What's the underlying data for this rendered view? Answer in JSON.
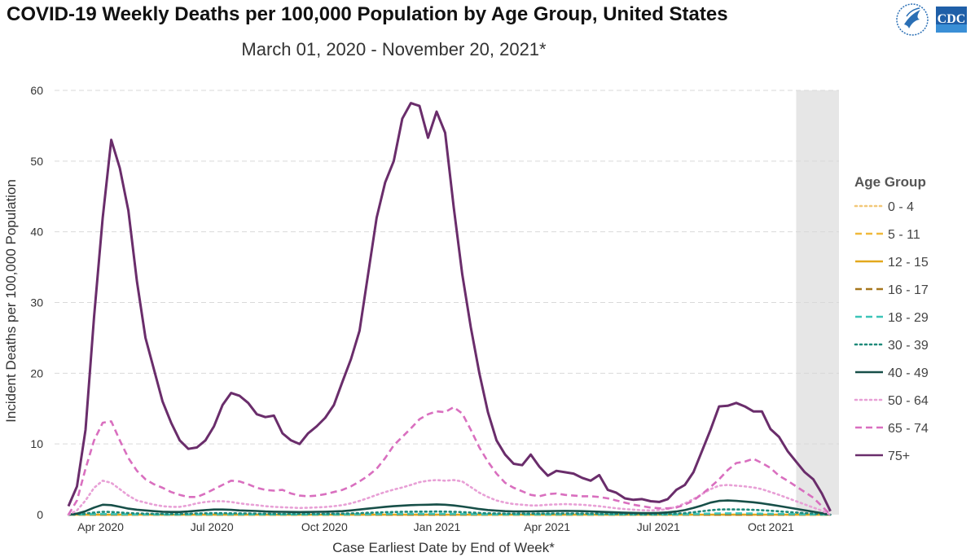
{
  "chart_data": {
    "type": "line",
    "title": "COVID-19 Weekly Deaths per 100,000 Population by Age Group, United States",
    "subtitle": "March 01, 2020 - November 20, 2021*",
    "xlabel": "Case Earliest Date by End of Week*",
    "ylabel": "Incident Deaths per 100,000 Population",
    "ylim": [
      0,
      60
    ],
    "yticks": [
      0,
      10,
      20,
      30,
      40,
      50,
      60
    ],
    "x_tick_labels": [
      {
        "date": "2020-04-01",
        "label": "Apr 2020"
      },
      {
        "date": "2020-07-01",
        "label": "Jul 2020"
      },
      {
        "date": "2020-10-01",
        "label": "Oct 2020"
      },
      {
        "date": "2021-01-01",
        "label": "Jan 2021"
      },
      {
        "date": "2021-04-01",
        "label": "Apr 2021"
      },
      {
        "date": "2021-07-01",
        "label": "Jul 2021"
      },
      {
        "date": "2021-10-01",
        "label": "Oct 2021"
      }
    ],
    "x_range": [
      "2020-03-01",
      "2021-11-27"
    ],
    "shaded_region": [
      "2021-10-23",
      "2021-11-27"
    ],
    "grid": "horizontal dashed",
    "legend_title": "Age Group",
    "legend_position": "right",
    "x": [
      "2020-03-07",
      "2020-03-14",
      "2020-03-21",
      "2020-03-28",
      "2020-04-04",
      "2020-04-11",
      "2020-04-18",
      "2020-04-25",
      "2020-05-02",
      "2020-05-09",
      "2020-05-16",
      "2020-05-23",
      "2020-05-30",
      "2020-06-06",
      "2020-06-13",
      "2020-06-20",
      "2020-06-27",
      "2020-07-04",
      "2020-07-11",
      "2020-07-18",
      "2020-07-25",
      "2020-08-01",
      "2020-08-08",
      "2020-08-15",
      "2020-08-22",
      "2020-08-29",
      "2020-09-05",
      "2020-09-12",
      "2020-09-19",
      "2020-09-26",
      "2020-10-03",
      "2020-10-10",
      "2020-10-17",
      "2020-10-24",
      "2020-10-31",
      "2020-11-07",
      "2020-11-14",
      "2020-11-21",
      "2020-11-28",
      "2020-12-05",
      "2020-12-12",
      "2020-12-19",
      "2020-12-26",
      "2021-01-02",
      "2021-01-09",
      "2021-01-16",
      "2021-01-23",
      "2021-01-30",
      "2021-02-06",
      "2021-02-13",
      "2021-02-20",
      "2021-02-27",
      "2021-03-06",
      "2021-03-13",
      "2021-03-20",
      "2021-03-27",
      "2021-04-03",
      "2021-04-10",
      "2021-04-17",
      "2021-04-24",
      "2021-05-01",
      "2021-05-08",
      "2021-05-15",
      "2021-05-22",
      "2021-05-29",
      "2021-06-05",
      "2021-06-12",
      "2021-06-19",
      "2021-06-26",
      "2021-07-03",
      "2021-07-10",
      "2021-07-17",
      "2021-07-24",
      "2021-07-31",
      "2021-08-07",
      "2021-08-14",
      "2021-08-21",
      "2021-08-28",
      "2021-09-04",
      "2021-09-11",
      "2021-09-18",
      "2021-09-25",
      "2021-10-02",
      "2021-10-09",
      "2021-10-16",
      "2021-10-23",
      "2021-10-30",
      "2021-11-06",
      "2021-11-13",
      "2021-11-20"
    ],
    "series": [
      {
        "name": "0 - 4",
        "color": "#f2c879",
        "dash": "dot",
        "values": [
          0,
          0,
          0,
          0,
          0,
          0,
          0,
          0,
          0,
          0,
          0,
          0,
          0,
          0,
          0,
          0,
          0,
          0,
          0,
          0,
          0,
          0,
          0,
          0,
          0,
          0,
          0,
          0,
          0,
          0,
          0,
          0,
          0,
          0,
          0,
          0,
          0,
          0,
          0,
          0,
          0,
          0,
          0,
          0,
          0,
          0,
          0,
          0,
          0,
          0,
          0,
          0,
          0,
          0,
          0,
          0,
          0,
          0,
          0,
          0,
          0,
          0,
          0,
          0,
          0,
          0,
          0,
          0,
          0,
          0,
          0,
          0,
          0,
          0,
          0,
          0,
          0,
          0,
          0,
          0,
          0,
          0,
          0,
          0,
          0,
          0,
          0,
          0,
          0,
          0
        ]
      },
      {
        "name": "5 - 11",
        "color": "#f0b93b",
        "dash": "dash",
        "values": [
          0,
          0,
          0,
          0,
          0,
          0,
          0,
          0,
          0,
          0,
          0,
          0,
          0,
          0,
          0,
          0,
          0,
          0,
          0,
          0,
          0,
          0,
          0,
          0,
          0,
          0,
          0,
          0,
          0,
          0,
          0,
          0,
          0,
          0,
          0,
          0,
          0,
          0,
          0,
          0,
          0,
          0,
          0,
          0,
          0,
          0,
          0,
          0,
          0,
          0,
          0,
          0,
          0,
          0,
          0,
          0,
          0,
          0,
          0,
          0,
          0,
          0,
          0,
          0,
          0,
          0,
          0,
          0,
          0,
          0,
          0,
          0,
          0,
          0,
          0,
          0,
          0,
          0,
          0,
          0,
          0,
          0,
          0,
          0,
          0,
          0,
          0,
          0,
          0,
          0
        ]
      },
      {
        "name": "12 - 15",
        "color": "#e3a81d",
        "dash": "solid",
        "values": [
          0,
          0,
          0,
          0,
          0,
          0,
          0,
          0,
          0,
          0,
          0,
          0,
          0,
          0,
          0,
          0,
          0,
          0,
          0,
          0,
          0,
          0,
          0,
          0,
          0,
          0,
          0,
          0,
          0,
          0,
          0,
          0,
          0,
          0,
          0,
          0,
          0,
          0,
          0,
          0,
          0,
          0,
          0,
          0,
          0,
          0,
          0,
          0,
          0,
          0,
          0,
          0,
          0,
          0,
          0,
          0,
          0,
          0,
          0,
          0,
          0,
          0,
          0,
          0,
          0,
          0,
          0,
          0,
          0,
          0,
          0,
          0,
          0,
          0,
          0,
          0,
          0,
          0,
          0,
          0,
          0,
          0,
          0,
          0,
          0,
          0,
          0,
          0,
          0,
          0
        ]
      },
      {
        "name": "16 - 17",
        "color": "#a6761d",
        "dash": "dash",
        "values": [
          0,
          0,
          0,
          0,
          0,
          0,
          0,
          0,
          0,
          0,
          0,
          0,
          0,
          0,
          0,
          0,
          0,
          0,
          0,
          0,
          0,
          0,
          0,
          0,
          0,
          0,
          0,
          0,
          0,
          0,
          0,
          0,
          0,
          0,
          0,
          0,
          0,
          0,
          0,
          0,
          0,
          0,
          0,
          0,
          0,
          0,
          0,
          0,
          0,
          0,
          0,
          0,
          0,
          0,
          0,
          0,
          0,
          0,
          0,
          0,
          0,
          0,
          0,
          0,
          0,
          0,
          0,
          0,
          0,
          0,
          0,
          0,
          0,
          0,
          0,
          0,
          0,
          0,
          0,
          0,
          0,
          0,
          0,
          0,
          0,
          0,
          0,
          0,
          0,
          0
        ]
      },
      {
        "name": "18 - 29",
        "color": "#3cc4b8",
        "dash": "dash",
        "values": [
          0,
          0.02,
          0.05,
          0.08,
          0.09,
          0.08,
          0.07,
          0.05,
          0.04,
          0.03,
          0.03,
          0.02,
          0.02,
          0.02,
          0.03,
          0.04,
          0.05,
          0.06,
          0.06,
          0.05,
          0.05,
          0.04,
          0.04,
          0.03,
          0.03,
          0.03,
          0.03,
          0.03,
          0.03,
          0.03,
          0.03,
          0.04,
          0.04,
          0.05,
          0.06,
          0.07,
          0.08,
          0.09,
          0.1,
          0.1,
          0.11,
          0.11,
          0.11,
          0.12,
          0.11,
          0.1,
          0.09,
          0.08,
          0.06,
          0.05,
          0.04,
          0.04,
          0.04,
          0.04,
          0.04,
          0.04,
          0.04,
          0.05,
          0.05,
          0.05,
          0.05,
          0.04,
          0.04,
          0.03,
          0.03,
          0.03,
          0.02,
          0.02,
          0.02,
          0.02,
          0.03,
          0.04,
          0.06,
          0.09,
          0.12,
          0.15,
          0.17,
          0.18,
          0.18,
          0.17,
          0.16,
          0.14,
          0.12,
          0.1,
          0.08,
          0.07,
          0.05,
          0.04,
          0.02,
          0
        ]
      },
      {
        "name": "30 - 39",
        "color": "#1f8a7a",
        "dash": "dot",
        "values": [
          0,
          0.05,
          0.15,
          0.3,
          0.4,
          0.38,
          0.3,
          0.22,
          0.18,
          0.15,
          0.12,
          0.1,
          0.09,
          0.1,
          0.13,
          0.17,
          0.2,
          0.22,
          0.22,
          0.2,
          0.18,
          0.16,
          0.15,
          0.13,
          0.12,
          0.12,
          0.11,
          0.11,
          0.11,
          0.12,
          0.12,
          0.13,
          0.15,
          0.18,
          0.22,
          0.26,
          0.3,
          0.34,
          0.37,
          0.4,
          0.42,
          0.43,
          0.43,
          0.45,
          0.43,
          0.4,
          0.36,
          0.3,
          0.24,
          0.2,
          0.17,
          0.15,
          0.14,
          0.14,
          0.15,
          0.15,
          0.16,
          0.17,
          0.17,
          0.17,
          0.16,
          0.15,
          0.13,
          0.12,
          0.1,
          0.09,
          0.08,
          0.07,
          0.07,
          0.08,
          0.1,
          0.15,
          0.22,
          0.33,
          0.48,
          0.62,
          0.72,
          0.75,
          0.74,
          0.72,
          0.68,
          0.62,
          0.55,
          0.47,
          0.38,
          0.3,
          0.22,
          0.15,
          0.08,
          0
        ]
      },
      {
        "name": "40 - 49",
        "color": "#174f48",
        "dash": "solid",
        "values": [
          0,
          0.15,
          0.5,
          1.0,
          1.4,
          1.35,
          1.1,
          0.85,
          0.7,
          0.6,
          0.5,
          0.42,
          0.38,
          0.38,
          0.45,
          0.55,
          0.65,
          0.72,
          0.72,
          0.68,
          0.6,
          0.55,
          0.52,
          0.45,
          0.42,
          0.4,
          0.38,
          0.37,
          0.38,
          0.4,
          0.42,
          0.45,
          0.5,
          0.6,
          0.72,
          0.85,
          0.98,
          1.1,
          1.2,
          1.28,
          1.35,
          1.38,
          1.4,
          1.45,
          1.4,
          1.3,
          1.15,
          0.98,
          0.8,
          0.66,
          0.56,
          0.5,
          0.46,
          0.45,
          0.46,
          0.48,
          0.5,
          0.52,
          0.53,
          0.52,
          0.5,
          0.46,
          0.42,
          0.37,
          0.32,
          0.28,
          0.25,
          0.22,
          0.22,
          0.25,
          0.32,
          0.45,
          0.65,
          0.95,
          1.3,
          1.7,
          1.95,
          2.0,
          1.95,
          1.85,
          1.75,
          1.6,
          1.42,
          1.22,
          1.02,
          0.82,
          0.62,
          0.42,
          0.22,
          0
        ]
      },
      {
        "name": "50 - 64",
        "color": "#e8a0d6",
        "dash": "dot",
        "values": [
          0,
          0.6,
          2.0,
          3.8,
          4.8,
          4.5,
          3.6,
          2.7,
          2.0,
          1.7,
          1.4,
          1.2,
          1.1,
          1.1,
          1.3,
          1.6,
          1.8,
          1.9,
          1.9,
          1.8,
          1.6,
          1.45,
          1.35,
          1.2,
          1.1,
          1.05,
          1.0,
          0.95,
          0.98,
          1.02,
          1.08,
          1.2,
          1.35,
          1.6,
          1.95,
          2.35,
          2.8,
          3.2,
          3.55,
          3.85,
          4.2,
          4.6,
          4.8,
          4.9,
          4.8,
          4.9,
          4.7,
          3.9,
          3.1,
          2.5,
          2.0,
          1.7,
          1.5,
          1.4,
          1.3,
          1.3,
          1.4,
          1.45,
          1.5,
          1.45,
          1.4,
          1.3,
          1.2,
          1.05,
          0.9,
          0.78,
          0.7,
          0.62,
          0.6,
          0.65,
          0.8,
          1.1,
          1.6,
          2.2,
          2.9,
          3.6,
          4.1,
          4.2,
          4.1,
          4.0,
          3.85,
          3.6,
          3.2,
          2.8,
          2.35,
          1.9,
          1.45,
          1.0,
          0.55,
          0
        ]
      },
      {
        "name": "65 - 74",
        "color": "#d96fbf",
        "dash": "dash",
        "values": [
          0,
          2.0,
          6.5,
          10.5,
          13.0,
          13.2,
          10.5,
          8.0,
          6.2,
          5.0,
          4.3,
          3.8,
          3.2,
          2.8,
          2.5,
          2.5,
          3.0,
          3.6,
          4.2,
          4.8,
          4.7,
          4.3,
          3.8,
          3.5,
          3.4,
          3.5,
          3.0,
          2.7,
          2.6,
          2.7,
          2.9,
          3.2,
          3.5,
          4.0,
          4.7,
          5.5,
          6.5,
          8.0,
          9.8,
          11.0,
          12.2,
          13.5,
          14.2,
          14.6,
          14.5,
          15.2,
          14.3,
          12.0,
          9.5,
          7.5,
          5.8,
          4.5,
          3.8,
          3.3,
          2.8,
          2.6,
          2.9,
          3.0,
          2.8,
          2.7,
          2.6,
          2.6,
          2.5,
          2.3,
          2.0,
          1.7,
          1.4,
          1.2,
          1.0,
          0.9,
          0.9,
          1.0,
          1.4,
          2.0,
          2.9,
          3.9,
          5.0,
          6.3,
          7.3,
          7.5,
          7.9,
          7.3,
          6.6,
          5.5,
          4.8,
          4.0,
          3.2,
          2.4,
          1.2,
          0
        ]
      },
      {
        "name": "75+",
        "color": "#6a2d6b",
        "dash": "solid",
        "values": [
          1.2,
          4.0,
          12.0,
          28.0,
          42.0,
          53.0,
          49.0,
          43.0,
          33.0,
          25.0,
          20.5,
          16.0,
          13.0,
          10.5,
          9.3,
          9.5,
          10.5,
          12.5,
          15.5,
          17.2,
          16.8,
          15.8,
          14.2,
          13.8,
          14.0,
          11.5,
          10.5,
          10.0,
          11.5,
          12.5,
          13.7,
          15.5,
          18.8,
          22.0,
          26.0,
          34.0,
          42.0,
          47.0,
          50.0,
          56.0,
          58.2,
          57.8,
          53.3,
          57.0,
          54.0,
          43.5,
          34.0,
          26.5,
          20.0,
          14.5,
          10.5,
          8.5,
          7.2,
          7.0,
          8.5,
          6.8,
          5.5,
          6.2,
          6.0,
          5.8,
          5.2,
          4.8,
          5.6,
          3.5,
          3.1,
          2.3,
          2.1,
          2.2,
          1.9,
          1.8,
          2.2,
          3.5,
          4.2,
          6.0,
          9.0,
          12.0,
          15.3,
          15.4,
          15.8,
          15.3,
          14.6,
          14.6,
          12.1,
          11.0,
          9.0,
          7.5,
          6.0,
          5.0,
          3.0,
          0.5
        ]
      }
    ]
  }
}
